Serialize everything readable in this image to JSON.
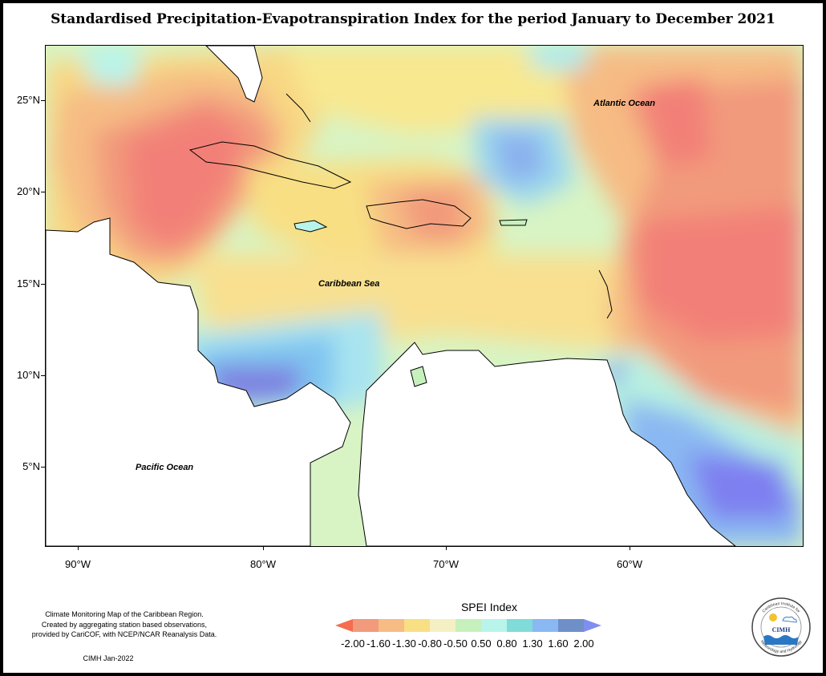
{
  "title": "Standardised Precipitation-Evapotranspiration Index for the period January to December 2021",
  "map": {
    "y_ticks": [
      "25°N",
      "20°N",
      "15°N",
      "10°N",
      "5°N"
    ],
    "x_ticks": [
      "90°W",
      "80°W",
      "70°W",
      "60°W"
    ],
    "labels": {
      "atlantic": "Atlantic Ocean",
      "caribbean": "Caribbean Sea",
      "pacific": "Pacific Ocean"
    }
  },
  "legend": {
    "title": "SPEI Index",
    "values": [
      "-2.00",
      "-1.60",
      "-1.30",
      "-0.80",
      "-0.50",
      "0.50",
      "0.80",
      "1.30",
      "1.60",
      "2.00"
    ],
    "colors": [
      "#f46d4f",
      "#f29a7c",
      "#f6bc84",
      "#f8df84",
      "#f5f0c4",
      "#c6f0bc",
      "#b8f4ea",
      "#7fdcd8",
      "#8ab8f2",
      "#6f8fc8",
      "#7e8ff0"
    ]
  },
  "footnote": {
    "line1": "Climate Monitoring Map of the Caribbean Region.",
    "line2": "Created by aggregating station based observations,",
    "line3": "provided by CariCOF, with NCEP/NCAR Reanalysis Data.",
    "credit": "CIMH Jan-2022"
  },
  "logo": {
    "top_text": "Caribbean Institute for",
    "bottom_text": "Meteorology and Hydrology",
    "acronym": "CIMH"
  }
}
